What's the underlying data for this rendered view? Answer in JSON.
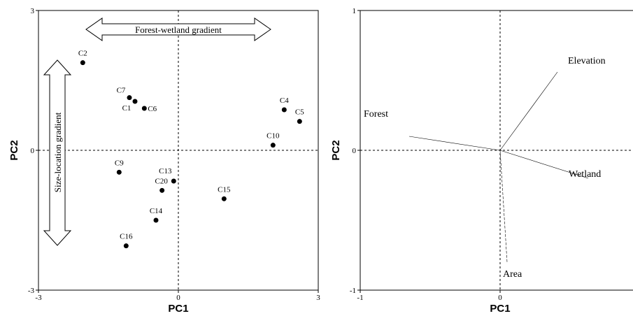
{
  "chart_data": [
    {
      "type": "scatter",
      "xlabel": "PC1",
      "ylabel": "PC2",
      "xlim": [
        -3,
        3
      ],
      "ylim": [
        -3,
        3
      ],
      "ticks": {
        "x": [
          {
            "value": -3,
            "label": "-3"
          },
          {
            "value": 0,
            "label": "0"
          },
          {
            "value": 3,
            "label": "3"
          }
        ],
        "y": [
          {
            "value": 3,
            "label": "3"
          },
          {
            "value": 0,
            "label": "0"
          },
          {
            "value": -3,
            "label": "-3"
          }
        ]
      },
      "reference_lines": {
        "x": 0,
        "y": 0,
        "style": "dashed"
      },
      "points": [
        {
          "label": "C2",
          "x": -2.05,
          "y": 1.88
        },
        {
          "label": "C7",
          "x": -1.05,
          "y": 1.13
        },
        {
          "label": "C1",
          "x": -0.93,
          "y": 1.05
        },
        {
          "label": "C6",
          "x": -0.73,
          "y": 0.9
        },
        {
          "label": "C4",
          "x": 2.27,
          "y": 0.87
        },
        {
          "label": "C5",
          "x": 2.6,
          "y": 0.62
        },
        {
          "label": "C10",
          "x": 2.03,
          "y": 0.11
        },
        {
          "label": "C9",
          "x": -1.27,
          "y": -0.47
        },
        {
          "label": "C13",
          "x": -0.1,
          "y": -0.66
        },
        {
          "label": "C20",
          "x": -0.35,
          "y": -0.86
        },
        {
          "label": "C15",
          "x": 0.98,
          "y": -1.04
        },
        {
          "label": "C14",
          "x": -0.48,
          "y": -1.5
        },
        {
          "label": "C16",
          "x": -1.12,
          "y": -2.05
        }
      ],
      "annotations": [
        {
          "text": "Forest-wetland gradient",
          "style": "double-arrow",
          "orientation": "horizontal"
        },
        {
          "text": "Size-location gradient",
          "style": "double-arrow",
          "orientation": "vertical"
        }
      ]
    },
    {
      "type": "biplot",
      "xlabel": "PC1",
      "ylabel": "PC2",
      "xlim": [
        -1,
        1
      ],
      "ylim": [
        -1,
        1
      ],
      "ticks": {
        "x": [
          {
            "value": -1,
            "label": "-1"
          },
          {
            "value": 0,
            "label": "0"
          }
        ],
        "y": [
          {
            "value": 1,
            "label": "1"
          },
          {
            "value": 0,
            "label": "0"
          },
          {
            "value": -1,
            "label": "-1"
          }
        ]
      },
      "reference_lines": {
        "x": 0,
        "y": 0,
        "style": "dashed"
      },
      "vectors": [
        {
          "label": "Elevation",
          "x": 0.41,
          "y": 0.56
        },
        {
          "label": "Forest",
          "x": -0.65,
          "y": 0.1
        },
        {
          "label": "Wetland",
          "x": 0.63,
          "y": -0.2
        },
        {
          "label": "Area",
          "x": 0.05,
          "y": -0.8
        }
      ]
    }
  ]
}
